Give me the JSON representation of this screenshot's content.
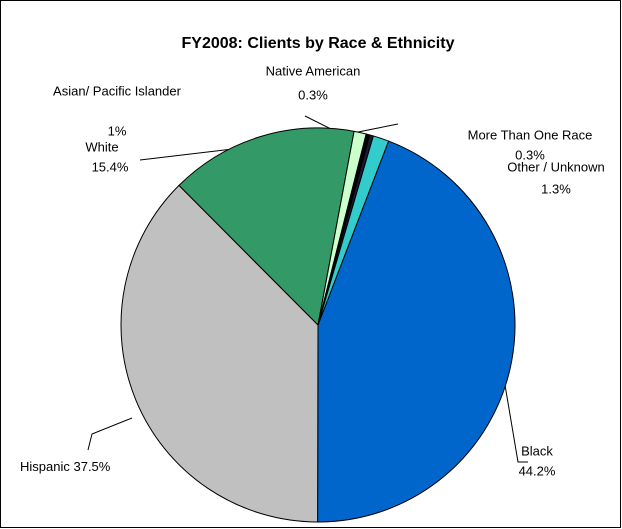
{
  "chart_data": {
    "type": "pie",
    "title": "FY2008: Clients by Race & Ethnicity",
    "categories": [
      "Black",
      "Hispanic",
      "White",
      "Asian/ Pacific Islander",
      "Native American",
      "More Than One Race",
      "Other / Unknown"
    ],
    "values": [
      44.2,
      37.5,
      15.4,
      1,
      0.3,
      0.3,
      1.3
    ],
    "value_labels": [
      "44.2%",
      "37.5%",
      "15.4%",
      "1%",
      "0.3%",
      "0.3%",
      "1.3%"
    ],
    "colors": [
      "#0066cc",
      "#c0c0c0",
      "#339966",
      "#ccffcc",
      "#000000",
      "#1a1a33",
      "#33cccc"
    ]
  }
}
